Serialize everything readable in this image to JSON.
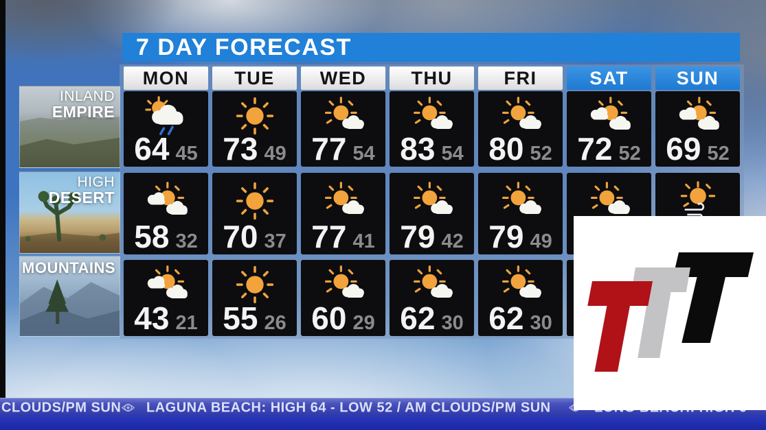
{
  "chart_data": {
    "type": "table",
    "title": "7 DAY FORECAST",
    "columns": [
      "MON",
      "TUE",
      "WED",
      "THU",
      "FRI",
      "SAT",
      "SUN"
    ],
    "weekend_columns": [
      "SAT",
      "SUN"
    ],
    "rows": [
      {
        "region": "INLAND EMPIRE",
        "high": [
          64,
          73,
          77,
          83,
          80,
          72,
          69
        ],
        "low": [
          45,
          49,
          54,
          54,
          52,
          52,
          52
        ],
        "conditions": [
          "rain",
          "sunny",
          "mostly-sunny",
          "mostly-sunny",
          "mostly-sunny",
          "partly-cloudy",
          "partly-cloudy"
        ]
      },
      {
        "region": "HIGH DESERT",
        "high": [
          58,
          70,
          77,
          79,
          79,
          null,
          null
        ],
        "low": [
          32,
          37,
          41,
          42,
          49,
          null,
          null
        ],
        "conditions": [
          "partly-cloudy",
          "sunny",
          "mostly-sunny",
          "mostly-sunny",
          "mostly-sunny",
          "mostly-sunny",
          "windy-sun"
        ]
      },
      {
        "region": "MOUNTAINS",
        "high": [
          43,
          55,
          60,
          62,
          62,
          null,
          null
        ],
        "low": [
          21,
          26,
          29,
          30,
          30,
          null,
          null
        ],
        "conditions": [
          "partly-cloudy",
          "sunny",
          "mostly-sunny",
          "mostly-sunny",
          "mostly-sunny",
          null,
          null
        ]
      }
    ]
  },
  "regions": [
    {
      "label_lines": [
        "INLAND",
        "EMPIRE"
      ]
    },
    {
      "label_lines": [
        "HIGH",
        "DESERT"
      ]
    },
    {
      "label_lines": [
        "MOUNTAINS"
      ]
    }
  ],
  "ticker": {
    "items": [
      "CLOUDS/PM SUN",
      "LAGUNA BEACH: HIGH 64 - LOW 52 / AM CLOUDS/PM SUN",
      "LONG BEACH: HIGH 6"
    ],
    "separator_icon": "cbs-eye-icon"
  },
  "logo": {
    "letters": [
      "T",
      "T",
      "T"
    ],
    "colors": {
      "first": "#b01218",
      "second": "#c3c3c5",
      "third": "#0b0b0b"
    },
    "background": "#ffffff"
  },
  "colors": {
    "banner_blue": "#2180d8",
    "weekend_header_blue": "#1e7ad3",
    "cell_bg": "#0d0d0f",
    "hi_temp": "#f3f3f3",
    "lo_temp": "#8b8b8d",
    "sun_orange": "#f2a33c",
    "rain_streak": "#2e6fd6",
    "ticker_top": "#4750ba",
    "ticker_bottom": "#1b28a0"
  }
}
